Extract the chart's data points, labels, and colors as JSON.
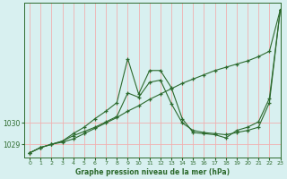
{
  "title": "Graphe pression niveau de la mer (hPa)",
  "bg_color": "#d8f0f0",
  "grid_color": "#f0b0b0",
  "line_color": "#2d6a2d",
  "xlim": [
    -0.5,
    23
  ],
  "ylim": [
    1028.4,
    1035.6
  ],
  "yticks": [
    1029,
    1030
  ],
  "xticks": [
    0,
    1,
    2,
    3,
    4,
    5,
    6,
    7,
    8,
    9,
    10,
    11,
    12,
    13,
    14,
    15,
    16,
    17,
    18,
    19,
    20,
    21,
    22,
    23
  ],
  "line1_x": [
    0,
    1,
    2,
    3,
    4,
    5,
    6,
    7,
    8,
    9,
    10,
    11,
    12,
    13,
    14,
    15,
    16,
    17,
    18,
    19,
    20,
    21,
    22,
    23
  ],
  "line1_y": [
    1028.6,
    1028.85,
    1029.0,
    1029.1,
    1029.25,
    1029.5,
    1029.75,
    1030.0,
    1030.25,
    1030.55,
    1030.8,
    1031.1,
    1031.35,
    1031.6,
    1031.85,
    1032.05,
    1032.25,
    1032.45,
    1032.6,
    1032.75,
    1032.9,
    1033.1,
    1033.35,
    1035.3
  ],
  "line2_x": [
    0,
    1,
    2,
    3,
    4,
    5,
    6,
    7,
    8,
    9,
    10,
    11,
    12,
    13,
    14,
    15,
    16,
    17,
    18,
    19,
    20,
    21,
    22,
    23
  ],
  "line2_y": [
    1028.6,
    1028.85,
    1029.0,
    1029.15,
    1029.4,
    1029.6,
    1029.8,
    1030.05,
    1030.3,
    1031.4,
    1031.2,
    1031.9,
    1032.0,
    1030.9,
    1030.0,
    1029.65,
    1029.55,
    1029.5,
    1029.45,
    1029.55,
    1029.65,
    1029.8,
    1030.95,
    1035.3
  ],
  "line3_x": [
    0,
    1,
    2,
    3,
    4,
    5,
    6,
    7,
    8,
    9,
    10,
    11,
    12,
    13,
    14,
    15,
    16,
    17,
    18,
    19,
    20,
    21,
    22,
    23
  ],
  "line3_y": [
    1028.6,
    1028.85,
    1029.0,
    1029.15,
    1029.5,
    1029.8,
    1030.2,
    1030.55,
    1030.95,
    1033.0,
    1031.35,
    1032.45,
    1032.45,
    1031.65,
    1030.2,
    1029.55,
    1029.5,
    1029.45,
    1029.3,
    1029.65,
    1029.8,
    1030.05,
    1031.15,
    1035.3
  ]
}
